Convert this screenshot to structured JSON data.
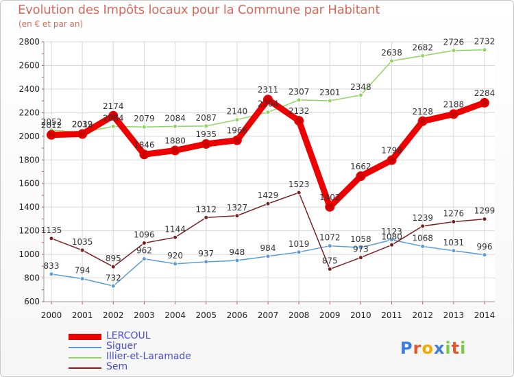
{
  "title": "Evolution des Impôts locaux pour la Commune par Habitant",
  "subtitle": "(en € et par an)",
  "logo_text": "Proxiti",
  "chart_data": {
    "type": "line",
    "title": "Evolution des Impôts locaux pour la Commune par Habitant",
    "subtitle": "(en € et par an)",
    "xlabel": "",
    "ylabel": "",
    "x": [
      "2000",
      "2001",
      "2002",
      "2003",
      "2004",
      "2005",
      "2006",
      "2007",
      "2008",
      "2009",
      "2010",
      "2011",
      "2012",
      "2013",
      "2014"
    ],
    "ylim": [
      600,
      2800
    ],
    "yticks": [
      600,
      800,
      1000,
      1200,
      1400,
      1600,
      1800,
      2000,
      2200,
      2400,
      2600,
      2800
    ],
    "grid": true,
    "series": [
      {
        "name": "LERCOUL",
        "color": "#ee0000",
        "values": [
          2012,
          2019,
          2174,
          1846,
          1880,
          1935,
          1966,
          2311,
          2132,
          1402,
          1662,
          1798,
          2128,
          2188,
          2284
        ]
      },
      {
        "name": "Siguer",
        "color": "#5b9bd5",
        "values": [
          833,
          794,
          732,
          962,
          920,
          937,
          948,
          984,
          1019,
          1072,
          1058,
          1123,
          1068,
          1031,
          996
        ]
      },
      {
        "name": "Illier-et-Laramade",
        "color": "#8fd460",
        "values": [
          2052,
          2032,
          2084,
          2079,
          2084,
          2087,
          2140,
          2204,
          2307,
          2301,
          2348,
          2638,
          2682,
          2726,
          2732
        ]
      },
      {
        "name": "Sem",
        "color": "#7a1f1f",
        "values": [
          1135,
          1035,
          895,
          1096,
          1144,
          1312,
          1327,
          1429,
          1523,
          875,
          973,
          1080,
          1239,
          1276,
          1299
        ]
      }
    ]
  }
}
